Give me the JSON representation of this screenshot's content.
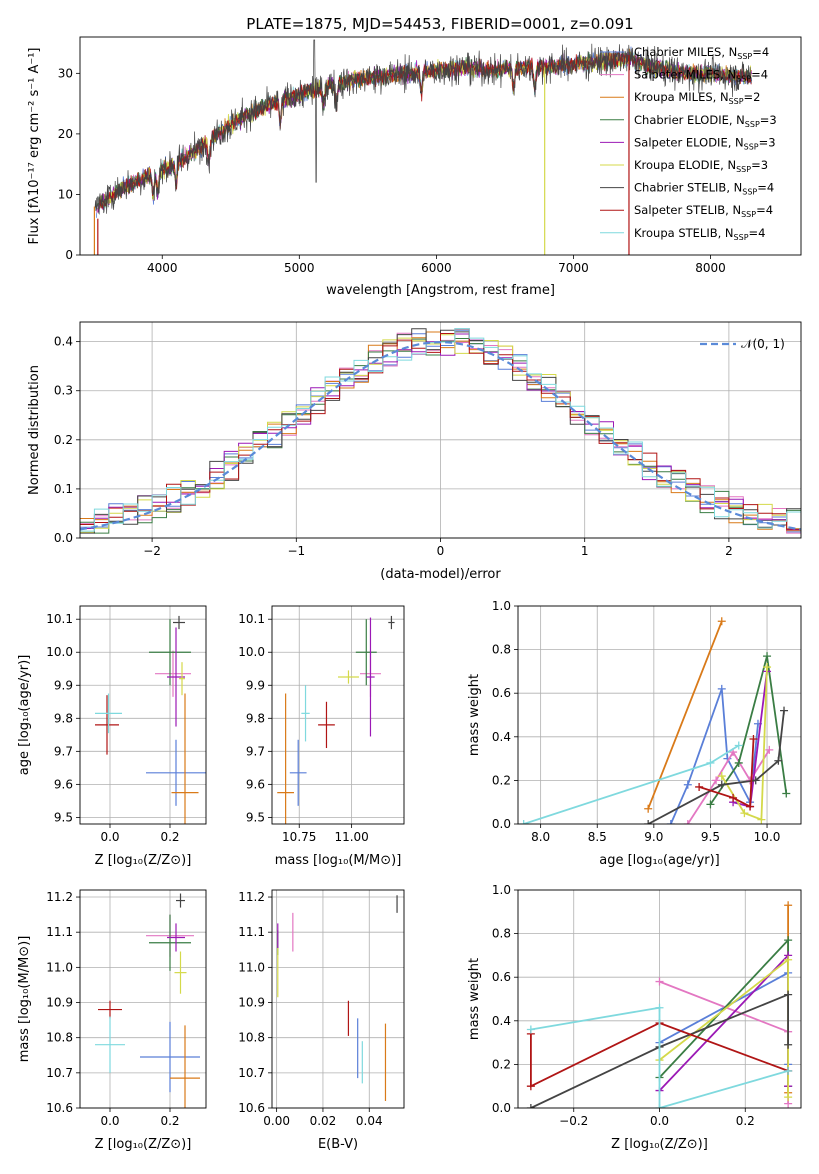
{
  "figure": {
    "title": "PLATE=1875, MJD=54453, FIBERID=0001, z=0.091"
  },
  "series_styles": [
    {
      "name": "Chabrier MILES",
      "color": "#5a7fd8"
    },
    {
      "name": "Salpeter MILES",
      "color": "#e377c2"
    },
    {
      "name": "Kroupa MILES",
      "color": "#d97a19"
    },
    {
      "name": "Chabrier ELODIE",
      "color": "#3a7d44"
    },
    {
      "name": "Salpeter ELODIE",
      "color": "#9b19b5"
    },
    {
      "name": "Kroupa ELODIE",
      "color": "#d4d94a"
    },
    {
      "name": "Chabrier STELIB",
      "color": "#444444"
    },
    {
      "name": "Salpeter STELIB",
      "color": "#b01515"
    },
    {
      "name": "Kroupa STELIB",
      "color": "#7fd9de"
    }
  ],
  "chart_data": [
    {
      "id": "spectrum",
      "type": "line",
      "xlabel": "wavelength [Angstrom, rest frame]",
      "ylabel": "Flux [fλ10⁻¹⁷ erg cm⁻² s⁻¹ A⁻¹]",
      "xlim": [
        3400,
        8660
      ],
      "ylim": [
        0,
        36
      ],
      "xticks": [
        4000,
        5000,
        6000,
        7000,
        8000
      ],
      "yticks": [
        0,
        10,
        20,
        30
      ],
      "legend_position": "top-right",
      "legend": [
        {
          "label": "Chabrier MILES, N",
          "sub": "SSP",
          "suffix": "=4"
        },
        {
          "label": "Salpeter MILES, N",
          "sub": "SSP",
          "suffix": "=4"
        },
        {
          "label": "Kroupa MILES, N",
          "sub": "SSP",
          "suffix": "=2"
        },
        {
          "label": "Chabrier ELODIE, N",
          "sub": "SSP",
          "suffix": "=3"
        },
        {
          "label": "Salpeter ELODIE, N",
          "sub": "SSP",
          "suffix": "=3"
        },
        {
          "label": "Kroupa ELODIE, N",
          "sub": "SSP",
          "suffix": "=3"
        },
        {
          "label": "Chabrier STELIB, N",
          "sub": "SSP",
          "suffix": "=4"
        },
        {
          "label": "Salpeter STELIB, N",
          "sub": "SSP",
          "suffix": "=4"
        },
        {
          "label": "Kroupa STELIB, N",
          "sub": "SSP",
          "suffix": "=4"
        }
      ],
      "continuum": [
        [
          3500,
          7.5
        ],
        [
          3700,
          11
        ],
        [
          3900,
          13
        ],
        [
          4000,
          14
        ],
        [
          4200,
          16.5
        ],
        [
          4400,
          20
        ],
        [
          4600,
          23
        ],
        [
          4800,
          25
        ],
        [
          5000,
          26.5
        ],
        [
          5200,
          28
        ],
        [
          5400,
          29
        ],
        [
          5600,
          29.5
        ],
        [
          5800,
          30
        ],
        [
          6000,
          30.5
        ],
        [
          6200,
          31
        ],
        [
          6400,
          30.5
        ],
        [
          6600,
          31
        ],
        [
          6800,
          31
        ],
        [
          7000,
          31.5
        ],
        [
          7200,
          32
        ],
        [
          7400,
          32.5
        ],
        [
          7600,
          31
        ],
        [
          7800,
          30
        ],
        [
          8000,
          30
        ],
        [
          8200,
          29.5
        ],
        [
          8300,
          29.5
        ]
      ],
      "grid": false
    },
    {
      "id": "residuals",
      "type": "histogram",
      "xlabel": "(data-model)/error",
      "ylabel": "Normed distribution",
      "xlim": [
        -2.5,
        2.5
      ],
      "ylim": [
        0,
        0.44
      ],
      "xticks": [
        -2,
        -1,
        0,
        1,
        2
      ],
      "yticks": [
        0.0,
        0.1,
        0.2,
        0.3,
        0.4
      ],
      "legend": [
        "𝒩(0, 1)"
      ],
      "legend_position": "top-right",
      "grid": true,
      "bin_width": 0.1,
      "reference_curve": "normal(0,1)"
    },
    {
      "id": "age_vs_Z",
      "type": "scatter",
      "xlabel": "Z [log₁₀(Z/Z⊙)]",
      "ylabel": "age  [log₁₀(age/yr)]",
      "xlim": [
        -0.1,
        0.32
      ],
      "ylim": [
        9.48,
        10.14
      ],
      "xticks": [
        0.0,
        0.2
      ],
      "yticks": [
        9.5,
        9.6,
        9.7,
        9.8,
        9.9,
        10.0,
        10.1
      ],
      "grid": true,
      "points": [
        {
          "series": 0,
          "x": 0.22,
          "y": 9.635,
          "xerr": 0.1,
          "yerr": 0.1
        },
        {
          "series": 1,
          "x": 0.21,
          "y": 9.935,
          "xerr": 0.06,
          "yerr": 0.07
        },
        {
          "series": 2,
          "x": 0.25,
          "y": 9.575,
          "xerr": 0.045,
          "yerr": 0.3
        },
        {
          "series": 3,
          "x": 0.2,
          "y": 10.0,
          "xerr": 0.07,
          "yerr": 0.1
        },
        {
          "series": 4,
          "x": 0.22,
          "y": 9.925,
          "xerr": 0.03,
          "yerr": 0.15
        },
        {
          "series": 5,
          "x": 0.24,
          "y": 9.92,
          "xerr": 0.01,
          "yerr": 0.05
        },
        {
          "series": 6,
          "x": 0.23,
          "y": 10.09,
          "xerr": 0.02,
          "yerr": 0.02
        },
        {
          "series": 7,
          "x": -0.01,
          "y": 9.78,
          "xerr": 0.04,
          "yerr": 0.09
        },
        {
          "series": 8,
          "x": -0.005,
          "y": 9.815,
          "xerr": 0.045,
          "yerr": 0.06
        }
      ]
    },
    {
      "id": "age_vs_mass",
      "type": "scatter",
      "xlabel": "mass [log₁₀(M/M⊙)]",
      "ylabel": "",
      "xlim": [
        10.62,
        11.25
      ],
      "ylim": [
        9.48,
        10.14
      ],
      "xticks": [
        10.75,
        11.0
      ],
      "yticks": [
        9.5,
        9.6,
        9.7,
        9.8,
        9.9,
        10.0,
        10.1
      ],
      "grid": true,
      "points": [
        {
          "series": 0,
          "x": 10.745,
          "y": 9.635,
          "xerr": 0.04,
          "yerr": 0.1
        },
        {
          "series": 1,
          "x": 11.09,
          "y": 9.935,
          "xerr": 0.05,
          "yerr": 0.07
        },
        {
          "series": 2,
          "x": 10.685,
          "y": 9.575,
          "xerr": 0.04,
          "yerr": 0.3
        },
        {
          "series": 3,
          "x": 11.07,
          "y": 10.0,
          "xerr": 0.05,
          "yerr": 0.1
        },
        {
          "series": 4,
          "x": 11.09,
          "y": 9.925,
          "xerr": 0.02,
          "yerr": 0.18
        },
        {
          "series": 5,
          "x": 10.985,
          "y": 9.925,
          "xerr": 0.05,
          "yerr": 0.02
        },
        {
          "series": 6,
          "x": 11.19,
          "y": 10.09,
          "xerr": 0.015,
          "yerr": 0.02
        },
        {
          "series": 7,
          "x": 10.88,
          "y": 9.78,
          "xerr": 0.04,
          "yerr": 0.07
        },
        {
          "series": 8,
          "x": 10.78,
          "y": 9.815,
          "xerr": 0.02,
          "yerr": 0.085
        }
      ]
    },
    {
      "id": "massweight_vs_age",
      "type": "line",
      "xlabel": "age  [log₁₀(age/yr)]",
      "ylabel": "mass weight",
      "xlim": [
        7.8,
        10.3
      ],
      "ylim": [
        0,
        1.0
      ],
      "xticks": [
        8.0,
        8.5,
        9.0,
        9.5,
        10.0
      ],
      "yticks": [
        0.0,
        0.2,
        0.4,
        0.6,
        0.8,
        1.0
      ],
      "grid": true,
      "series": [
        {
          "series": 0,
          "x": [
            9.15,
            9.3,
            9.6,
            9.65,
            9.85,
            9.92
          ],
          "y": [
            0.0,
            0.18,
            0.62,
            0.3,
            0.1,
            0.46
          ]
        },
        {
          "series": 1,
          "x": [
            9.3,
            9.55,
            9.7,
            9.85,
            10.02
          ],
          "y": [
            0.0,
            0.2,
            0.33,
            0.2,
            0.34
          ]
        },
        {
          "series": 2,
          "x": [
            8.95,
            9.6
          ],
          "y": [
            0.07,
            0.93
          ]
        },
        {
          "series": 3,
          "x": [
            9.5,
            9.75,
            10.0,
            10.17
          ],
          "y": [
            0.09,
            0.28,
            0.77,
            0.14
          ]
        },
        {
          "series": 4,
          "x": [
            9.7,
            9.85,
            10.0
          ],
          "y": [
            0.1,
            0.08,
            0.7
          ]
        },
        {
          "series": 5,
          "x": [
            9.6,
            9.8,
            9.95,
            10.0
          ],
          "y": [
            0.22,
            0.05,
            0.02,
            0.72
          ]
        },
        {
          "series": 6,
          "x": [
            8.95,
            9.6,
            9.9,
            10.1,
            10.15
          ],
          "y": [
            0.0,
            0.18,
            0.2,
            0.29,
            0.52
          ]
        },
        {
          "series": 7,
          "x": [
            9.4,
            9.7,
            9.85,
            9.88
          ],
          "y": [
            0.17,
            0.12,
            0.08,
            0.39
          ]
        },
        {
          "series": 8,
          "x": [
            7.85,
            9.5,
            9.75
          ],
          "y": [
            0.0,
            0.28,
            0.36
          ]
        }
      ]
    },
    {
      "id": "mass_vs_Z",
      "type": "scatter",
      "xlabel": "Z [log₁₀(Z/Z⊙)]",
      "ylabel": "mass [log₁₀(M/M⊙)]",
      "xlim": [
        -0.1,
        0.32
      ],
      "ylim": [
        10.6,
        11.22
      ],
      "xticks": [
        0.0,
        0.2
      ],
      "yticks": [
        10.6,
        10.7,
        10.8,
        10.9,
        11.0,
        11.1,
        11.2
      ],
      "grid": true,
      "points": [
        {
          "series": 0,
          "x": 0.2,
          "y": 10.745,
          "xerr": 0.1,
          "yerr": 0.1
        },
        {
          "series": 1,
          "x": 0.2,
          "y": 11.09,
          "xerr": 0.08,
          "yerr": 0.06
        },
        {
          "series": 2,
          "x": 0.25,
          "y": 10.685,
          "xerr": 0.05,
          "yerr": 0.15
        },
        {
          "series": 3,
          "x": 0.2,
          "y": 11.07,
          "xerr": 0.07,
          "yerr": 0.08
        },
        {
          "series": 4,
          "x": 0.22,
          "y": 11.085,
          "xerr": 0.03,
          "yerr": 0.04
        },
        {
          "series": 5,
          "x": 0.235,
          "y": 10.985,
          "xerr": 0.02,
          "yerr": 0.06
        },
        {
          "series": 6,
          "x": 0.235,
          "y": 11.19,
          "xerr": 0.015,
          "yerr": 0.02
        },
        {
          "series": 7,
          "x": 0.0,
          "y": 10.88,
          "xerr": 0.04,
          "yerr": 0.025
        },
        {
          "series": 8,
          "x": 0.0,
          "y": 10.78,
          "xerr": 0.05,
          "yerr": 0.08
        }
      ]
    },
    {
      "id": "mass_vs_ebv",
      "type": "scatter",
      "xlabel": "E(B-V)",
      "ylabel": "",
      "xlim": [
        -0.002,
        0.055
      ],
      "ylim": [
        10.6,
        11.22
      ],
      "xticks": [
        0.0,
        0.02,
        0.04
      ],
      "yticks": [
        10.6,
        10.7,
        10.8,
        10.9,
        11.0,
        11.1,
        11.2
      ],
      "grid": true,
      "points": [
        {
          "series": 0,
          "x": 0.035,
          "y": 10.77,
          "xerr": 0.0,
          "yerr": 0.085
        },
        {
          "series": 1,
          "x": 0.007,
          "y": 11.1,
          "xerr": 0.0,
          "yerr": 0.055
        },
        {
          "series": 2,
          "x": 0.047,
          "y": 10.73,
          "xerr": 0.0,
          "yerr": 0.11
        },
        {
          "series": 3,
          "x": 0.0005,
          "y": 11.07,
          "xerr": 0.0,
          "yerr": 0.035
        },
        {
          "series": 4,
          "x": 0.0005,
          "y": 11.09,
          "xerr": 0.0,
          "yerr": 0.035
        },
        {
          "series": 5,
          "x": 0.0005,
          "y": 10.985,
          "xerr": 0.0,
          "yerr": 0.07
        },
        {
          "series": 6,
          "x": 0.052,
          "y": 11.18,
          "xerr": 0.0,
          "yerr": 0.025
        },
        {
          "series": 7,
          "x": 0.031,
          "y": 10.855,
          "xerr": 0.0,
          "yerr": 0.05
        },
        {
          "series": 8,
          "x": 0.037,
          "y": 10.73,
          "xerr": 0.0,
          "yerr": 0.06
        }
      ]
    },
    {
      "id": "massweight_vs_Z",
      "type": "line",
      "xlabel": "Z [log₁₀(Z/Z⊙)]",
      "ylabel": "mass weight",
      "xlim": [
        -0.33,
        0.33
      ],
      "ylim": [
        0,
        1.0
      ],
      "xticks": [
        -0.2,
        0.0,
        0.2
      ],
      "yticks": [
        0.0,
        0.2,
        0.4,
        0.6,
        0.8,
        1.0
      ],
      "grid": true,
      "series": [
        {
          "series": 0,
          "x": [
            0.0,
            0.3,
            0.3
          ],
          "y": [
            0.3,
            0.62,
            0.2
          ]
        },
        {
          "series": 1,
          "x": [
            0.0,
            0.3,
            0.3
          ],
          "y": [
            0.58,
            0.35,
            0.02
          ]
        },
        {
          "series": 2,
          "x": [
            0.3,
            0.3
          ],
          "y": [
            0.07,
            0.93
          ]
        },
        {
          "series": 3,
          "x": [
            0.0,
            0.3,
            0.3
          ],
          "y": [
            0.14,
            0.77,
            0.1
          ]
        },
        {
          "series": 4,
          "x": [
            0.0,
            0.3,
            0.3
          ],
          "y": [
            0.08,
            0.7,
            0.1
          ]
        },
        {
          "series": 5,
          "x": [
            0.0,
            0.3,
            0.3
          ],
          "y": [
            0.22,
            0.68,
            0.05
          ]
        },
        {
          "series": 6,
          "x": [
            -0.3,
            0.0,
            0.3,
            0.3
          ],
          "y": [
            0.0,
            0.28,
            0.52,
            0.29
          ]
        },
        {
          "series": 7,
          "x": [
            -0.3,
            -0.3,
            0.0,
            0.3
          ],
          "y": [
            0.34,
            0.1,
            0.39,
            0.17
          ]
        },
        {
          "series": 8,
          "x": [
            -0.3,
            0.0,
            0.0,
            0.3
          ],
          "y": [
            0.36,
            0.46,
            0.0,
            0.17
          ]
        }
      ]
    }
  ]
}
